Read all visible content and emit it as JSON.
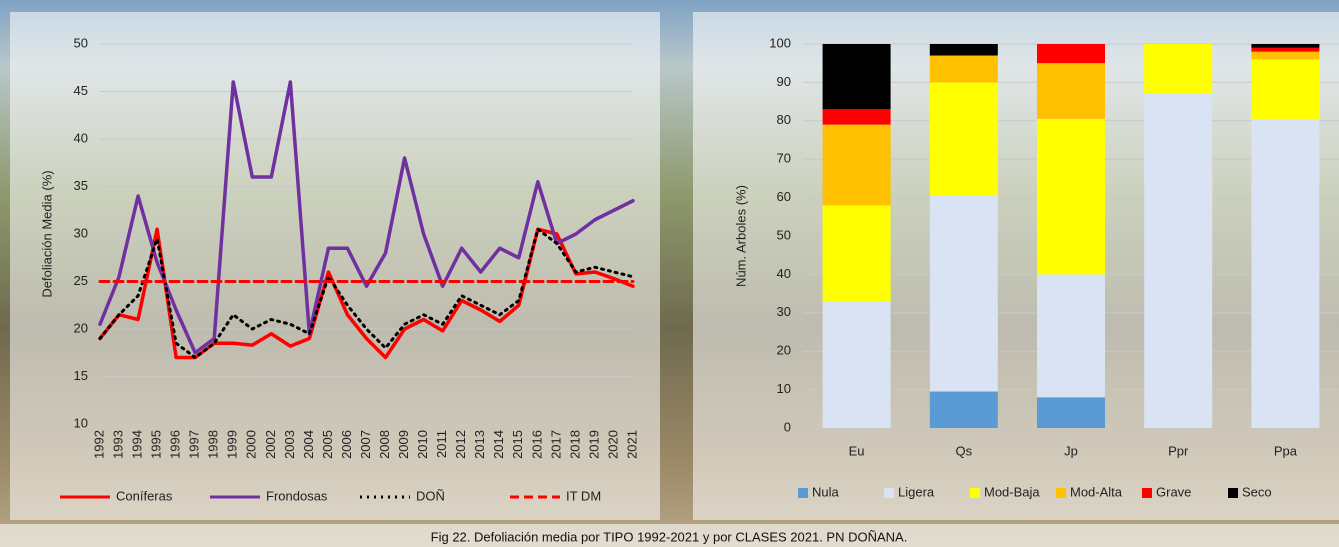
{
  "caption": "Fig 22. Defoliación media por TIPO 1992-2021 y por CLASES 2021. PN DOÑANA.",
  "chart_data": [
    {
      "type": "line",
      "y_label": "Defoliación Media (%)",
      "categories": [
        "1992",
        "1993",
        "1994",
        "1995",
        "1996",
        "1997",
        "1998",
        "1999",
        "2000",
        "2002",
        "2003",
        "2004",
        "2005",
        "2006",
        "2007",
        "2008",
        "2009",
        "2010",
        "2011",
        "2012",
        "2013",
        "2014",
        "2015",
        "2016",
        "2017",
        "2018",
        "2019",
        "2020",
        "2021"
      ],
      "ylim": [
        10,
        50
      ],
      "yticks": [
        10,
        15,
        20,
        25,
        30,
        35,
        40,
        45,
        50
      ],
      "grid": true,
      "legend": "bottom",
      "series": [
        {
          "name": "Coníferas",
          "color": "#ff0000",
          "line_style": "solid",
          "values": [
            19,
            21.5,
            21,
            30.5,
            17,
            17,
            18.5,
            18.5,
            18.3,
            19.5,
            18.2,
            19,
            26,
            21.5,
            19,
            17,
            20,
            21,
            19.8,
            23,
            22,
            20.8,
            22.5,
            30.5,
            30,
            25.8,
            26,
            25.3,
            24.5
          ]
        },
        {
          "name": "Frondosas",
          "color": "#7030a0",
          "line_style": "solid",
          "values": [
            20.5,
            25.5,
            34,
            27,
            22,
            17.5,
            19,
            46,
            36,
            36,
            46,
            19.5,
            28.5,
            28.5,
            24.5,
            28,
            38,
            30,
            24.5,
            28.5,
            26,
            28.5,
            27.5,
            35.5,
            29,
            30,
            31.5,
            32.5,
            33.5
          ]
        },
        {
          "name": "DOÑ",
          "color": "#000000",
          "line_style": "dotted",
          "values": [
            19,
            21.5,
            23.5,
            29.5,
            18.5,
            17,
            18.5,
            21.5,
            20,
            21,
            20.5,
            19.5,
            25.5,
            22.5,
            20,
            18,
            20.5,
            21.5,
            20.5,
            23.5,
            22.5,
            21.5,
            23,
            30.5,
            29,
            26,
            26.5,
            26,
            25.5
          ]
        },
        {
          "name": "IT DM",
          "color": "#ff0000",
          "line_style": "dashed",
          "values": [
            25,
            25,
            25,
            25,
            25,
            25,
            25,
            25,
            25,
            25,
            25,
            25,
            25,
            25,
            25,
            25,
            25,
            25,
            25,
            25,
            25,
            25,
            25,
            25,
            25,
            25,
            25,
            25,
            25
          ]
        }
      ]
    },
    {
      "type": "stacked_bar",
      "y_label": "Núm. Arboles (%)",
      "categories": [
        "Eu",
        "Qs",
        "Jp",
        "Ppr",
        "Ppa"
      ],
      "ylim": [
        0,
        100
      ],
      "yticks": [
        0,
        10,
        20,
        30,
        40,
        50,
        60,
        70,
        80,
        90,
        100
      ],
      "grid": true,
      "legend": "bottom",
      "series": [
        {
          "name": "Nula",
          "color": "#5b9bd5",
          "values": [
            0,
            9.5,
            8,
            0,
            0
          ]
        },
        {
          "name": "Ligera",
          "color": "#dae3f3",
          "values": [
            33,
            51,
            32,
            87,
            80.5
          ]
        },
        {
          "name": "Mod-Baja",
          "color": "#ffff00",
          "values": [
            25,
            29.5,
            40.5,
            13,
            15.5
          ]
        },
        {
          "name": "Mod-Alta",
          "color": "#ffc000",
          "values": [
            21,
            7,
            14.5,
            0,
            2
          ]
        },
        {
          "name": "Grave",
          "color": "#ff0000",
          "values": [
            4,
            0,
            5,
            0,
            1
          ]
        },
        {
          "name": "Seco",
          "color": "#000000",
          "values": [
            17,
            3,
            0,
            0,
            1
          ]
        }
      ]
    }
  ]
}
